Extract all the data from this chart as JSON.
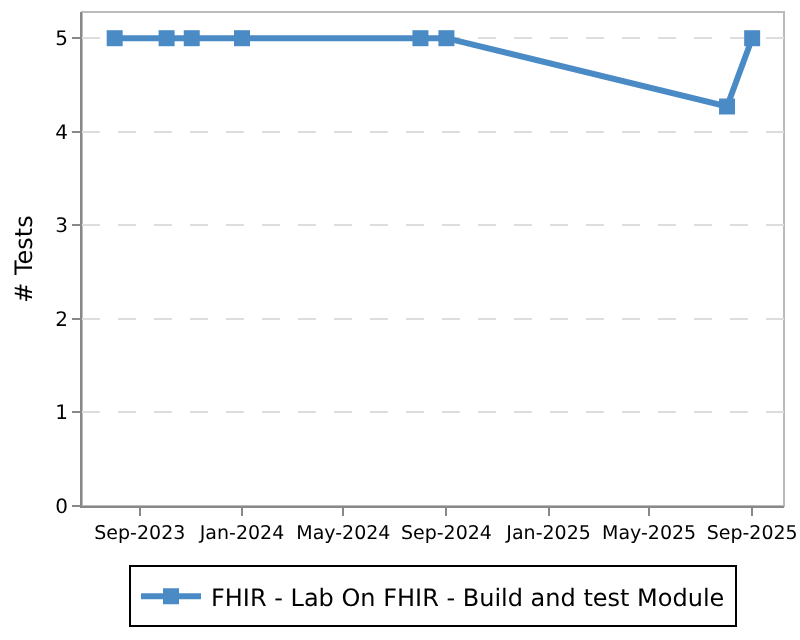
{
  "chart_data": {
    "type": "line",
    "ylabel": "# Tests",
    "x": [
      "2023-08-02",
      "2023-10-03",
      "2023-11-02",
      "2024-01-01",
      "2024-08-01",
      "2024-09-01",
      "2025-08-02",
      "2025-09-01"
    ],
    "series": [
      {
        "name": "FHIR - Lab On FHIR - Build and test Module",
        "color": "#4a8bc6",
        "values": [
          5,
          5,
          5,
          5,
          5,
          5,
          4.27,
          5
        ]
      }
    ],
    "xlim": [
      "2023-06-24",
      "2025-10-09"
    ],
    "xticks": [
      {
        "value": "2023-09-01",
        "label": "Sep-2023"
      },
      {
        "value": "2024-01-01",
        "label": "Jan-2024"
      },
      {
        "value": "2024-05-01",
        "label": "May-2024"
      },
      {
        "value": "2024-09-01",
        "label": "Sep-2024"
      },
      {
        "value": "2025-01-01",
        "label": "Jan-2025"
      },
      {
        "value": "2025-05-01",
        "label": "May-2025"
      },
      {
        "value": "2025-09-01",
        "label": "Sep-2025"
      }
    ],
    "ylim": [
      0,
      5.28
    ],
    "yticks": [
      0,
      1,
      2,
      3,
      4,
      5
    ],
    "grid": "y",
    "legend": "bottom",
    "marker": "square",
    "line_style": "solid"
  }
}
